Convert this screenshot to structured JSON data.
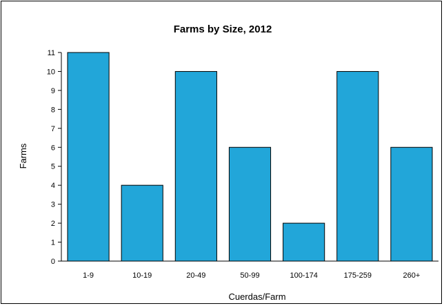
{
  "chart_data": {
    "type": "bar",
    "title": "Farms by Size, 2012",
    "xlabel": "Cuerdas/Farm",
    "ylabel": "Farms",
    "categories": [
      "1-9",
      "10-19",
      "20-49",
      "50-99",
      "100-174",
      "175-259",
      "260+"
    ],
    "values": [
      11,
      4,
      10,
      6,
      2,
      10,
      6
    ],
    "ylim": [
      0,
      11
    ],
    "yticks": [
      0,
      1,
      2,
      3,
      4,
      5,
      6,
      7,
      8,
      9,
      10,
      11
    ],
    "bar_color": "#22a6d9",
    "grid": false,
    "legend": "none"
  }
}
